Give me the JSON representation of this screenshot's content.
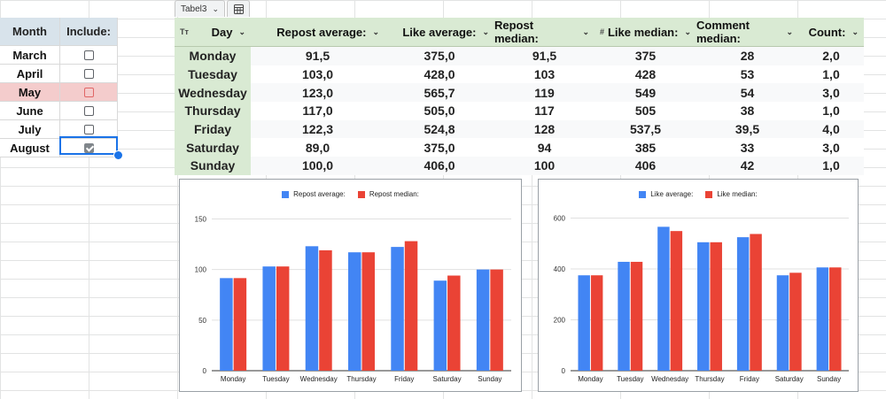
{
  "left_panel": {
    "headers": [
      "Month",
      "Include:"
    ],
    "rows": [
      {
        "month": "March",
        "checked": false,
        "highlight": false
      },
      {
        "month": "April",
        "checked": false,
        "highlight": false
      },
      {
        "month": "May",
        "checked": false,
        "highlight": true
      },
      {
        "month": "June",
        "checked": false,
        "highlight": false
      },
      {
        "month": "July",
        "checked": false,
        "highlight": false
      },
      {
        "month": "August",
        "checked": true,
        "highlight": false
      }
    ]
  },
  "table_tab": {
    "name": "Tabel3"
  },
  "table": {
    "columns": [
      "Day",
      "Repost average:",
      "Like average:",
      "Repost median:",
      "Like median:",
      "Comment median:",
      "Count:"
    ],
    "day_type_icon": "Tт",
    "number_type_icon": "#",
    "rows": [
      [
        "Monday",
        "91,5",
        "375,0",
        "91,5",
        "375",
        "28",
        "2,0"
      ],
      [
        "Tuesday",
        "103,0",
        "428,0",
        "103",
        "428",
        "53",
        "1,0"
      ],
      [
        "Wednesday",
        "123,0",
        "565,7",
        "119",
        "549",
        "54",
        "3,0"
      ],
      [
        "Thursday",
        "117,0",
        "505,0",
        "117",
        "505",
        "38",
        "1,0"
      ],
      [
        "Friday",
        "122,3",
        "524,8",
        "128",
        "537,5",
        "39,5",
        "4,0"
      ],
      [
        "Saturday",
        "89,0",
        "375,0",
        "94",
        "385",
        "33",
        "3,0"
      ],
      [
        "Sunday",
        "100,0",
        "406,0",
        "100",
        "406",
        "42",
        "1,0"
      ]
    ]
  },
  "chart_data": [
    {
      "type": "bar",
      "categories": [
        "Monday",
        "Tuesday",
        "Wednesday",
        "Thursday",
        "Friday",
        "Saturday",
        "Sunday"
      ],
      "series": [
        {
          "name": "Repost average:",
          "color": "#4285f4",
          "values": [
            91.5,
            103,
            123,
            117,
            122.3,
            89,
            100
          ]
        },
        {
          "name": "Repost median:",
          "color": "#ea4335",
          "values": [
            91.5,
            103,
            119,
            117,
            128,
            94,
            100
          ]
        }
      ],
      "yticks": [
        0,
        50,
        100,
        150
      ],
      "ylim": [
        0,
        160
      ]
    },
    {
      "type": "bar",
      "categories": [
        "Monday",
        "Tuesday",
        "Wednesday",
        "Thursday",
        "Friday",
        "Saturday",
        "Sunday"
      ],
      "series": [
        {
          "name": "Like average:",
          "color": "#4285f4",
          "values": [
            375,
            428,
            565.7,
            505,
            524.8,
            375,
            406
          ]
        },
        {
          "name": "Like median:",
          "color": "#ea4335",
          "values": [
            375,
            428,
            549,
            505,
            537.5,
            385,
            406
          ]
        }
      ],
      "yticks": [
        0,
        200,
        400,
        600
      ],
      "ylim": [
        0,
        640
      ]
    }
  ]
}
